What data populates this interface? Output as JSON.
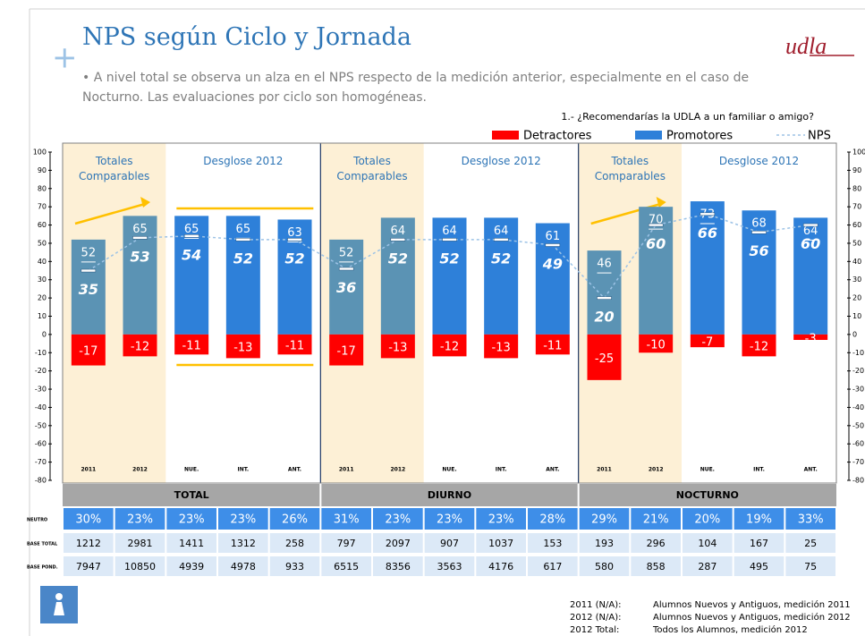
{
  "header": {
    "title": "NPS según Ciclo y Jornada",
    "bullet": "A nivel total se observa un alza en el NPS respecto de la medición anterior, especialmente en el caso de Nocturno. Las evaluaciones por ciclo son homogéneas.",
    "logo": "udla"
  },
  "chart_data": {
    "type": "bar",
    "question": "1.- ¿Recomendarías la UDLA a un familiar o amigo?",
    "categories": [
      "2011",
      "2012",
      "NUE.",
      "INT.",
      "ANT.",
      "2011",
      "2012",
      "NUE.",
      "INT.",
      "ANT.",
      "2011",
      "2012",
      "NUE.",
      "INT.",
      "ANT."
    ],
    "groups": [
      {
        "name": "TOTAL",
        "left_label": "Totales Comparables",
        "right_label": "Desglose 2012"
      },
      {
        "name": "DIURNO",
        "left_label": "Totales Comparables",
        "right_label": "Desglose 2012"
      },
      {
        "name": "NOCTURNO",
        "left_label": "Totales Comparables",
        "right_label": "Desglose 2012"
      }
    ],
    "series": [
      {
        "name": "Detractores",
        "color": "#ff0000",
        "values": [
          -17,
          -12,
          -11,
          -13,
          -11,
          -17,
          -13,
          -12,
          -13,
          -11,
          -25,
          -10,
          -7,
          -12,
          -3
        ]
      },
      {
        "name": "Promotores",
        "color": "#2e80d9",
        "colors": [
          "#5b93b4",
          "#5b93b4",
          "#2e80d9",
          "#2e80d9",
          "#2e80d9",
          "#5b93b4",
          "#5b93b4",
          "#2e80d9",
          "#2e80d9",
          "#2e80d9",
          "#5b93b4",
          "#5b93b4",
          "#2e80d9",
          "#2e80d9",
          "#2e80d9"
        ],
        "values": [
          52,
          65,
          65,
          65,
          63,
          52,
          64,
          64,
          64,
          61,
          46,
          70,
          73,
          68,
          64
        ]
      },
      {
        "name": "NPS",
        "type": "line",
        "color": "#9dc3e6",
        "values": [
          35,
          53,
          54,
          52,
          52,
          36,
          52,
          52,
          52,
          49,
          20,
          60,
          66,
          56,
          60
        ]
      }
    ],
    "ylim": [
      -80,
      100
    ],
    "yticks": [
      -80,
      -70,
      -60,
      -50,
      -40,
      -30,
      -20,
      -10,
      0,
      10,
      20,
      30,
      40,
      50,
      60,
      70,
      80,
      90,
      100
    ],
    "y2lim": [
      -80,
      100
    ],
    "y2ticks": [
      -80,
      -70,
      -60,
      -50,
      -40,
      -30,
      -20,
      -10,
      0,
      10,
      20,
      30,
      40,
      50,
      60,
      70,
      80,
      90,
      100
    ]
  },
  "table": {
    "row_labels": [
      "NEUTRO",
      "BASE TOTAL",
      "BASE POND."
    ],
    "rows": [
      [
        "30%",
        "23%",
        "23%",
        "23%",
        "26%",
        "31%",
        "23%",
        "23%",
        "23%",
        "28%",
        "29%",
        "21%",
        "20%",
        "19%",
        "33%"
      ],
      [
        1212,
        2981,
        1411,
        1312,
        258,
        797,
        2097,
        907,
        1037,
        153,
        193,
        296,
        104,
        167,
        25
      ],
      [
        7947,
        10850,
        4939,
        4978,
        933,
        6515,
        8356,
        3563,
        4176,
        617,
        580,
        858,
        287,
        495,
        75
      ]
    ]
  },
  "footnotes": [
    {
      "term": "2011 (N/A):",
      "text": "Alumnos Nuevos y Antiguos, medición 2011"
    },
    {
      "term": "2012 (N/A):",
      "text": "Alumnos Nuevos y Antiguos, medición 2012"
    },
    {
      "term": "2012 Total:",
      "text": "Todos los Alumnos, medición 2012"
    }
  ]
}
